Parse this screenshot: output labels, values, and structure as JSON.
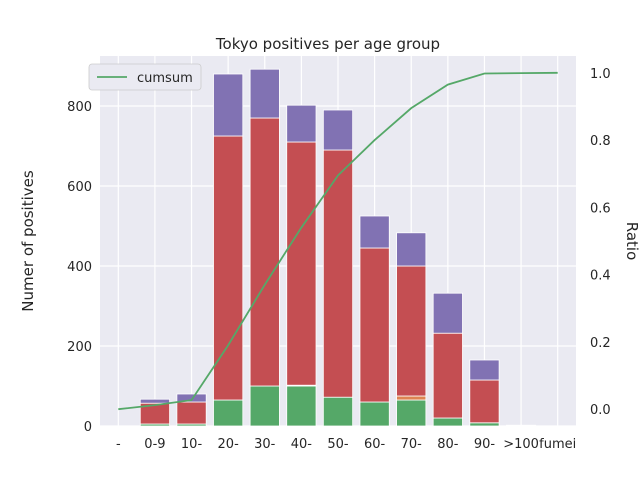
{
  "chart_data": {
    "type": "bar",
    "title": "Tokyo positives per age group",
    "ylabel": "Numer of positives",
    "ylabel_right": "Ratio",
    "xlabel": "",
    "categories": [
      "-",
      "0-9",
      "10-",
      "20-",
      "30-",
      "40-",
      "50-",
      "60-",
      "70-",
      "80-",
      "90-",
      ">100",
      "fumei"
    ],
    "ylim": [
      0,
      925
    ],
    "y_ticks": [
      0,
      200,
      400,
      600,
      800
    ],
    "y2lim": [
      -0.05,
      1.05
    ],
    "y2_ticks": [
      "0.0",
      "0.2",
      "0.4",
      "0.6",
      "0.8",
      "1.0"
    ],
    "grid": true,
    "stacked_series": [
      {
        "color": "#55a868",
        "values": [
          0,
          5,
          5,
          65,
          100,
          100,
          72,
          60,
          65,
          20,
          8,
          0,
          0
        ]
      },
      {
        "color": "#dd8452",
        "values": [
          0,
          0,
          0,
          0,
          0,
          2,
          0,
          0,
          10,
          0,
          0,
          0,
          0
        ]
      },
      {
        "color": "#c44e52",
        "values": [
          0,
          52,
          55,
          660,
          670,
          608,
          618,
          385,
          325,
          212,
          107,
          1,
          0
        ]
      },
      {
        "color": "#8172b3",
        "values": [
          0,
          10,
          20,
          155,
          122,
          92,
          100,
          80,
          83,
          100,
          50,
          1,
          0
        ]
      }
    ],
    "line_series": {
      "name": "cumsum",
      "color": "#55a868",
      "values": [
        0.0,
        0.012,
        0.027,
        0.19,
        0.37,
        0.54,
        0.695,
        0.8,
        0.895,
        0.965,
        0.998,
        0.999,
        1.0
      ]
    },
    "legend_position": "top-left"
  }
}
